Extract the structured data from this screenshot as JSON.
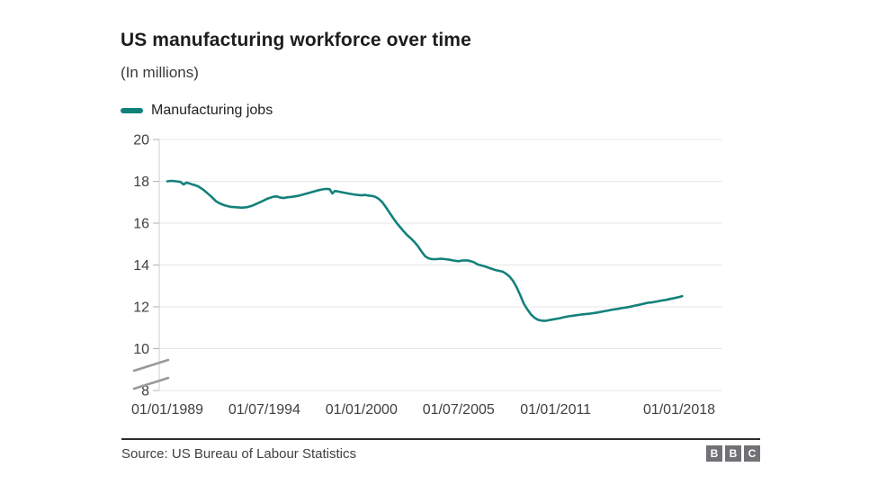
{
  "header": {
    "title": "US manufacturing workforce over time",
    "subtitle": "(In millions)"
  },
  "legend": {
    "items": [
      {
        "label": "Manufacturing jobs",
        "color": "#13817b"
      }
    ]
  },
  "footer": {
    "source": "Source: US Bureau of Labour Statistics",
    "logo_letters": [
      "B",
      "B",
      "C"
    ]
  },
  "chart_data": {
    "type": "line",
    "title": "US manufacturing workforce over time",
    "subtitle": "(In millions)",
    "ylabel": "",
    "xlabel": "",
    "unit": "millions of jobs",
    "grid": "horizontal",
    "legend_position": "top-left",
    "ylim": [
      8,
      20
    ],
    "y_ticks": [
      8,
      10,
      12,
      14,
      16,
      18,
      20
    ],
    "y_axis_break_below": 10,
    "x_ticks": [
      {
        "label": "01/01/1989",
        "year": 1989.0
      },
      {
        "label": "01/07/1994",
        "year": 1994.5
      },
      {
        "label": "01/01/2000",
        "year": 2000.0
      },
      {
        "label": "01/07/2005",
        "year": 2005.5
      },
      {
        "label": "01/01/2011",
        "year": 2011.0
      },
      {
        "label": "01/01/2018",
        "year": 2018.0
      }
    ],
    "colors": {
      "line": "#13817b",
      "grid": "#e7e7e7",
      "axis": "#cccccc",
      "tick": "#b3b3b3",
      "break_mark": "#999999",
      "label": "#404040"
    },
    "series": [
      {
        "name": "Manufacturing jobs",
        "color": "#13817b",
        "points": [
          [
            1989.0,
            18.0
          ],
          [
            1989.25,
            18.02
          ],
          [
            1989.5,
            18.0
          ],
          [
            1989.75,
            17.97
          ],
          [
            1989.92,
            17.85
          ],
          [
            1990.08,
            17.94
          ],
          [
            1990.25,
            17.9
          ],
          [
            1990.42,
            17.85
          ],
          [
            1990.58,
            17.81
          ],
          [
            1990.75,
            17.76
          ],
          [
            1991.0,
            17.62
          ],
          [
            1991.25,
            17.45
          ],
          [
            1991.5,
            17.26
          ],
          [
            1991.75,
            17.05
          ],
          [
            1992.0,
            16.93
          ],
          [
            1992.3,
            16.84
          ],
          [
            1992.6,
            16.78
          ],
          [
            1992.9,
            16.76
          ],
          [
            1993.2,
            16.74
          ],
          [
            1993.5,
            16.76
          ],
          [
            1993.8,
            16.83
          ],
          [
            1994.1,
            16.94
          ],
          [
            1994.4,
            17.06
          ],
          [
            1994.7,
            17.18
          ],
          [
            1995.0,
            17.26
          ],
          [
            1995.2,
            17.28
          ],
          [
            1995.4,
            17.22
          ],
          [
            1995.6,
            17.2
          ],
          [
            1995.8,
            17.24
          ],
          [
            1996.0,
            17.25
          ],
          [
            1996.25,
            17.28
          ],
          [
            1996.5,
            17.32
          ],
          [
            1996.75,
            17.38
          ],
          [
            1997.0,
            17.44
          ],
          [
            1997.25,
            17.5
          ],
          [
            1997.5,
            17.56
          ],
          [
            1997.75,
            17.61
          ],
          [
            1998.0,
            17.64
          ],
          [
            1998.2,
            17.62
          ],
          [
            1998.35,
            17.42
          ],
          [
            1998.5,
            17.54
          ],
          [
            1998.75,
            17.5
          ],
          [
            1999.0,
            17.46
          ],
          [
            1999.25,
            17.42
          ],
          [
            1999.5,
            17.38
          ],
          [
            1999.75,
            17.35
          ],
          [
            2000.0,
            17.33
          ],
          [
            2000.2,
            17.35
          ],
          [
            2000.4,
            17.32
          ],
          [
            2000.6,
            17.3
          ],
          [
            2000.8,
            17.25
          ],
          [
            2001.0,
            17.15
          ],
          [
            2001.2,
            16.98
          ],
          [
            2001.4,
            16.74
          ],
          [
            2001.6,
            16.49
          ],
          [
            2001.8,
            16.24
          ],
          [
            2002.0,
            16.0
          ],
          [
            2002.2,
            15.8
          ],
          [
            2002.4,
            15.6
          ],
          [
            2002.6,
            15.42
          ],
          [
            2002.8,
            15.27
          ],
          [
            2003.0,
            15.1
          ],
          [
            2003.2,
            14.9
          ],
          [
            2003.4,
            14.65
          ],
          [
            2003.6,
            14.42
          ],
          [
            2003.8,
            14.32
          ],
          [
            2004.0,
            14.28
          ],
          [
            2004.25,
            14.28
          ],
          [
            2004.5,
            14.3
          ],
          [
            2004.75,
            14.28
          ],
          [
            2005.0,
            14.25
          ],
          [
            2005.25,
            14.21
          ],
          [
            2005.5,
            14.18
          ],
          [
            2005.75,
            14.22
          ],
          [
            2006.0,
            14.22
          ],
          [
            2006.2,
            14.18
          ],
          [
            2006.4,
            14.12
          ],
          [
            2006.6,
            14.02
          ],
          [
            2006.8,
            13.98
          ],
          [
            2007.0,
            13.93
          ],
          [
            2007.2,
            13.87
          ],
          [
            2007.4,
            13.81
          ],
          [
            2007.6,
            13.76
          ],
          [
            2007.8,
            13.72
          ],
          [
            2008.0,
            13.68
          ],
          [
            2008.2,
            13.58
          ],
          [
            2008.4,
            13.44
          ],
          [
            2008.6,
            13.22
          ],
          [
            2008.8,
            12.92
          ],
          [
            2009.0,
            12.55
          ],
          [
            2009.2,
            12.15
          ],
          [
            2009.4,
            11.88
          ],
          [
            2009.6,
            11.64
          ],
          [
            2009.8,
            11.48
          ],
          [
            2010.0,
            11.38
          ],
          [
            2010.2,
            11.34
          ],
          [
            2010.4,
            11.33
          ],
          [
            2010.6,
            11.36
          ],
          [
            2010.8,
            11.39
          ],
          [
            2011.0,
            11.42
          ],
          [
            2011.25,
            11.46
          ],
          [
            2011.5,
            11.51
          ],
          [
            2011.75,
            11.55
          ],
          [
            2012.0,
            11.58
          ],
          [
            2012.25,
            11.61
          ],
          [
            2012.5,
            11.64
          ],
          [
            2012.75,
            11.66
          ],
          [
            2013.0,
            11.68
          ],
          [
            2013.25,
            11.71
          ],
          [
            2013.5,
            11.75
          ],
          [
            2013.75,
            11.79
          ],
          [
            2014.0,
            11.83
          ],
          [
            2014.25,
            11.87
          ],
          [
            2014.5,
            11.9
          ],
          [
            2014.75,
            11.94
          ],
          [
            2015.0,
            11.97
          ],
          [
            2015.25,
            12.01
          ],
          [
            2015.5,
            12.06
          ],
          [
            2015.75,
            12.1
          ],
          [
            2016.0,
            12.15
          ],
          [
            2016.25,
            12.2
          ],
          [
            2016.5,
            12.22
          ],
          [
            2016.75,
            12.26
          ],
          [
            2017.0,
            12.3
          ],
          [
            2017.25,
            12.33
          ],
          [
            2017.5,
            12.38
          ],
          [
            2017.75,
            12.42
          ],
          [
            2018.0,
            12.47
          ],
          [
            2018.17,
            12.51
          ]
        ]
      }
    ]
  }
}
